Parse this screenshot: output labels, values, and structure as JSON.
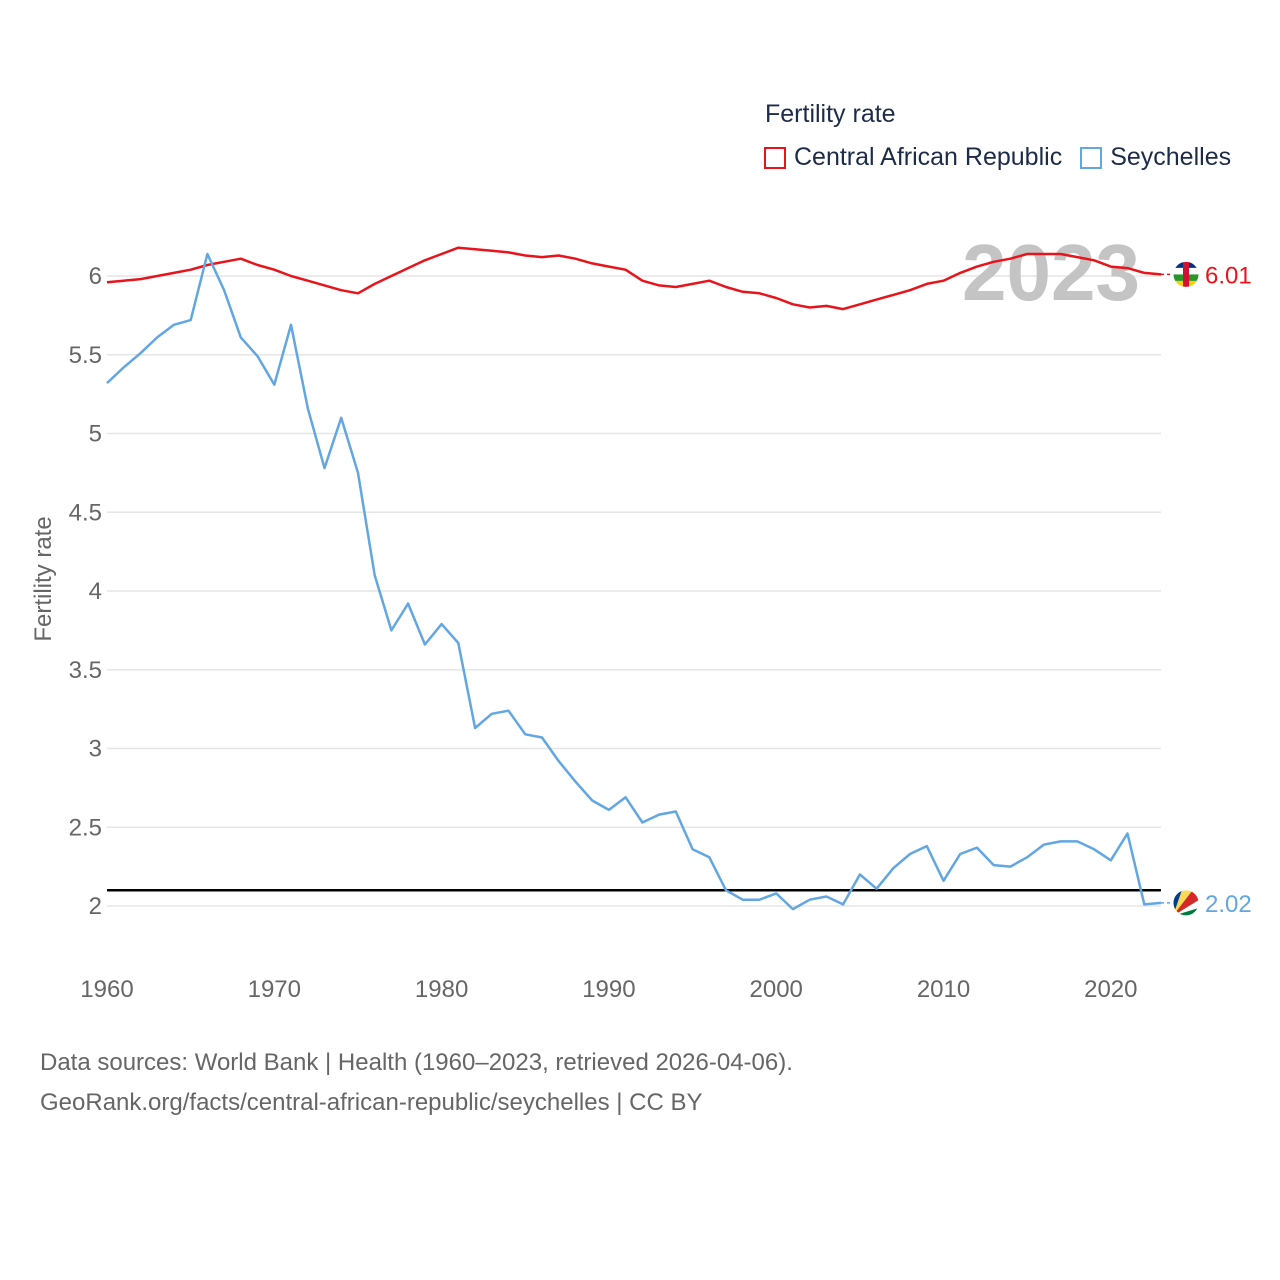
{
  "legend": {
    "title": "Fertility rate",
    "items": [
      {
        "label": "Central African Republic",
        "color": "#e8141c"
      },
      {
        "label": "Seychelles",
        "color": "#62a6e2"
      }
    ]
  },
  "source": {
    "line1": "Data sources: World Bank | Health (1960–2023, retrieved 2026-04-06).",
    "line2": "GeoRank.org/facts/central-african-republic/seychelles | CC BY"
  },
  "chart_data": {
    "type": "line",
    "title": "Fertility rate",
    "year_label": "2023",
    "ylabel": "Fertility rate",
    "xlabel": "",
    "xlim": [
      1960,
      2023
    ],
    "ylim": [
      2,
      6
    ],
    "x_ticks": [
      1960,
      1970,
      1980,
      1990,
      2000,
      2010,
      2020
    ],
    "y_ticks": [
      2,
      2.5,
      3,
      3.5,
      4,
      4.5,
      5,
      5.5,
      6
    ],
    "reference_line": 2.1,
    "x": [
      1960,
      1961,
      1962,
      1963,
      1964,
      1965,
      1966,
      1967,
      1968,
      1969,
      1970,
      1971,
      1972,
      1973,
      1974,
      1975,
      1976,
      1977,
      1978,
      1979,
      1980,
      1981,
      1982,
      1983,
      1984,
      1985,
      1986,
      1987,
      1988,
      1989,
      1990,
      1991,
      1992,
      1993,
      1994,
      1995,
      1996,
      1997,
      1998,
      1999,
      2000,
      2001,
      2002,
      2003,
      2004,
      2005,
      2006,
      2007,
      2008,
      2009,
      2010,
      2011,
      2012,
      2013,
      2014,
      2015,
      2016,
      2017,
      2018,
      2019,
      2020,
      2021,
      2022,
      2023
    ],
    "series": [
      {
        "name": "Central African Republic",
        "color": "#e8141c",
        "end_label": "6.01",
        "values": [
          5.96,
          5.97,
          5.98,
          6.0,
          6.02,
          6.04,
          6.07,
          6.09,
          6.11,
          6.07,
          6.04,
          6.0,
          5.97,
          5.94,
          5.91,
          5.89,
          5.95,
          6.0,
          6.05,
          6.1,
          6.14,
          6.18,
          6.17,
          6.16,
          6.15,
          6.13,
          6.12,
          6.13,
          6.11,
          6.08,
          6.06,
          6.04,
          5.97,
          5.94,
          5.93,
          5.95,
          5.97,
          5.93,
          5.9,
          5.89,
          5.86,
          5.82,
          5.8,
          5.81,
          5.79,
          5.82,
          5.85,
          5.88,
          5.91,
          5.95,
          5.97,
          6.02,
          6.06,
          6.09,
          6.11,
          6.14,
          6.14,
          6.14,
          6.12,
          6.1,
          6.06,
          6.05,
          6.02,
          6.01
        ]
      },
      {
        "name": "Seychelles",
        "color": "#62a6e2",
        "end_label": "2.02",
        "values": [
          5.32,
          5.42,
          5.51,
          5.61,
          5.69,
          5.72,
          6.14,
          5.91,
          5.61,
          5.49,
          5.31,
          5.69,
          5.16,
          4.78,
          5.1,
          4.75,
          4.1,
          3.75,
          3.92,
          3.66,
          3.79,
          3.67,
          3.13,
          3.22,
          3.24,
          3.09,
          3.07,
          2.92,
          2.79,
          2.67,
          2.61,
          2.69,
          2.53,
          2.58,
          2.6,
          2.36,
          2.31,
          2.1,
          2.04,
          2.04,
          2.08,
          1.98,
          2.04,
          2.06,
          2.01,
          2.2,
          2.11,
          2.24,
          2.33,
          2.38,
          2.16,
          2.33,
          2.37,
          2.26,
          2.25,
          2.31,
          2.39,
          2.41,
          2.41,
          2.36,
          2.29,
          2.46,
          2.01,
          2.02
        ]
      }
    ]
  }
}
